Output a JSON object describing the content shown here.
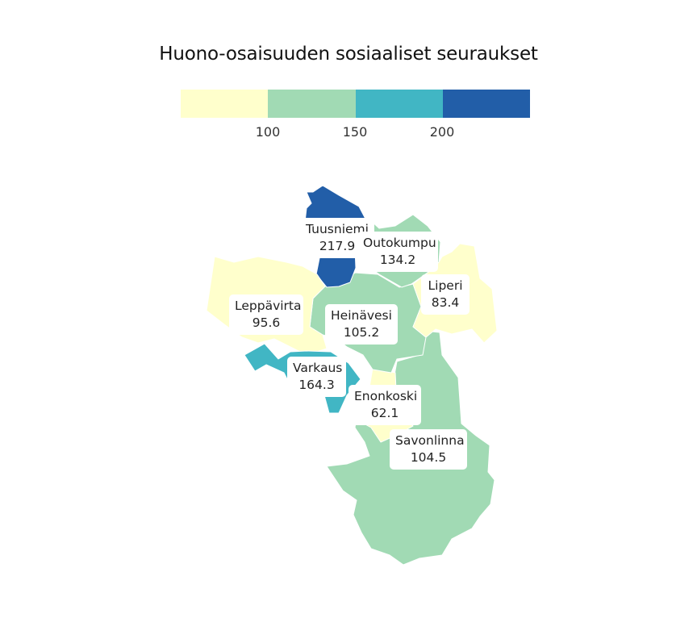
{
  "title": "Huono-osaisuuden sosiaaliset seuraukset",
  "legend": {
    "colors": [
      "#ffffcc",
      "#a1dab4",
      "#41b6c4",
      "#225ea8"
    ],
    "ticks": [
      "100",
      "150",
      "200"
    ]
  },
  "regions": [
    {
      "name": "Tuusniemi",
      "value": "217.9",
      "color": "#225ea8"
    },
    {
      "name": "Outokumpu",
      "value": "134.2",
      "color": "#a1dab4"
    },
    {
      "name": "Liperi",
      "value": "83.4",
      "color": "#ffffcc"
    },
    {
      "name": "Leppävirta",
      "value": "95.6",
      "color": "#ffffcc"
    },
    {
      "name": "Heinävesi",
      "value": "105.2",
      "color": "#a1dab4"
    },
    {
      "name": "Varkaus",
      "value": "164.3",
      "color": "#41b6c4"
    },
    {
      "name": "Enonkoski",
      "value": "62.1",
      "color": "#ffffcc"
    },
    {
      "name": "Savonlinna",
      "value": "104.5",
      "color": "#a1dab4"
    }
  ]
}
